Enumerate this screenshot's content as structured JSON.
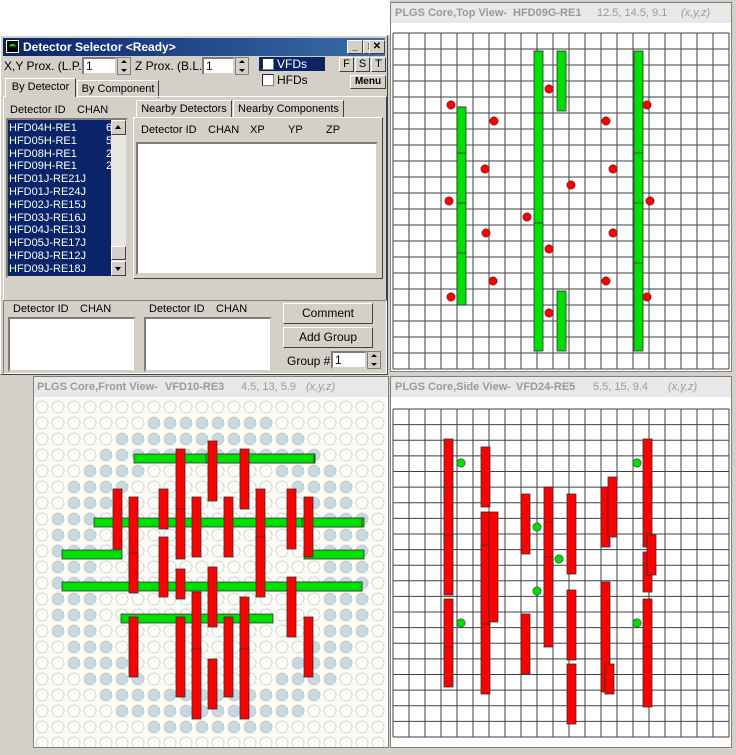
{
  "dialog": {
    "title": "Detector Selector <Ready>",
    "minimize_glyph": "_",
    "maximize_glyph": "□",
    "close_glyph": "✕",
    "xy_prox_label": "X,Y Prox. (L.P.)",
    "xy_prox_value": "1",
    "z_prox_label": "Z Prox. (B.L.)",
    "z_prox_value": "1",
    "vfds_label": "VFDs",
    "hfds_label": "HFDs",
    "btn_f": "F",
    "btn_s": "S",
    "btn_t": "T",
    "menu_label": "Menu",
    "tabs": [
      "By Detector",
      "By Component"
    ],
    "list_headers": [
      "Detector ID",
      "CHAN"
    ],
    "detector_list": [
      {
        "id": "HFD04H-RE1",
        "chan": "6"
      },
      {
        "id": "HFD05H-RE1",
        "chan": "5"
      },
      {
        "id": "HFD08H-RE1",
        "chan": "2"
      },
      {
        "id": "HFD09H-RE1",
        "chan": "2"
      },
      {
        "id": "HFD01J-RE21J",
        "chan": ""
      },
      {
        "id": "HFD01J-RE24J",
        "chan": ""
      },
      {
        "id": "HFD02J-RE15J",
        "chan": ""
      },
      {
        "id": "HFD03J-RE16J",
        "chan": ""
      },
      {
        "id": "HFD04J-RE13J",
        "chan": ""
      },
      {
        "id": "HFD05J-RE17J",
        "chan": ""
      },
      {
        "id": "HFD08J-RE12J",
        "chan": ""
      },
      {
        "id": "HFD09J-RE18J",
        "chan": ""
      }
    ],
    "nearby_tabs": [
      "Nearby Detectors",
      "Nearby Components"
    ],
    "nearby_headers": [
      "Detector ID",
      "CHAN",
      "XP",
      "YP",
      "ZP"
    ],
    "group_headers_left": [
      "Detector ID",
      "CHAN"
    ],
    "group_headers_right": [
      "Detector ID",
      "CHAN"
    ],
    "comment_button": "Comment",
    "add_group_button": "Add Group",
    "group_num_label": "Group #:",
    "group_num_value": "1"
  },
  "top_view": {
    "title": "PLGS Core,Top View-",
    "detector": "HFD09G-RE1",
    "coords": "12.5, 14.5, 9.1",
    "coord_axes": "(x,y,z)"
  },
  "front_view": {
    "title": "PLGS Core,Front View-",
    "detector": "VFD10-RE3",
    "coords": "4.5, 13, 5.9",
    "coord_axes": "(x,y,z)"
  },
  "side_view": {
    "title": "PLGS Core,Side View-",
    "detector": "VFD24-RE5",
    "coords": "5.5, 15, 9.4",
    "coord_axes": "(x,y,z)"
  },
  "colors": {
    "vfd_red": "#ff0000",
    "hfd_green": "#00e000",
    "grid_line": "#404040",
    "selection_blue": "#0a246a"
  }
}
